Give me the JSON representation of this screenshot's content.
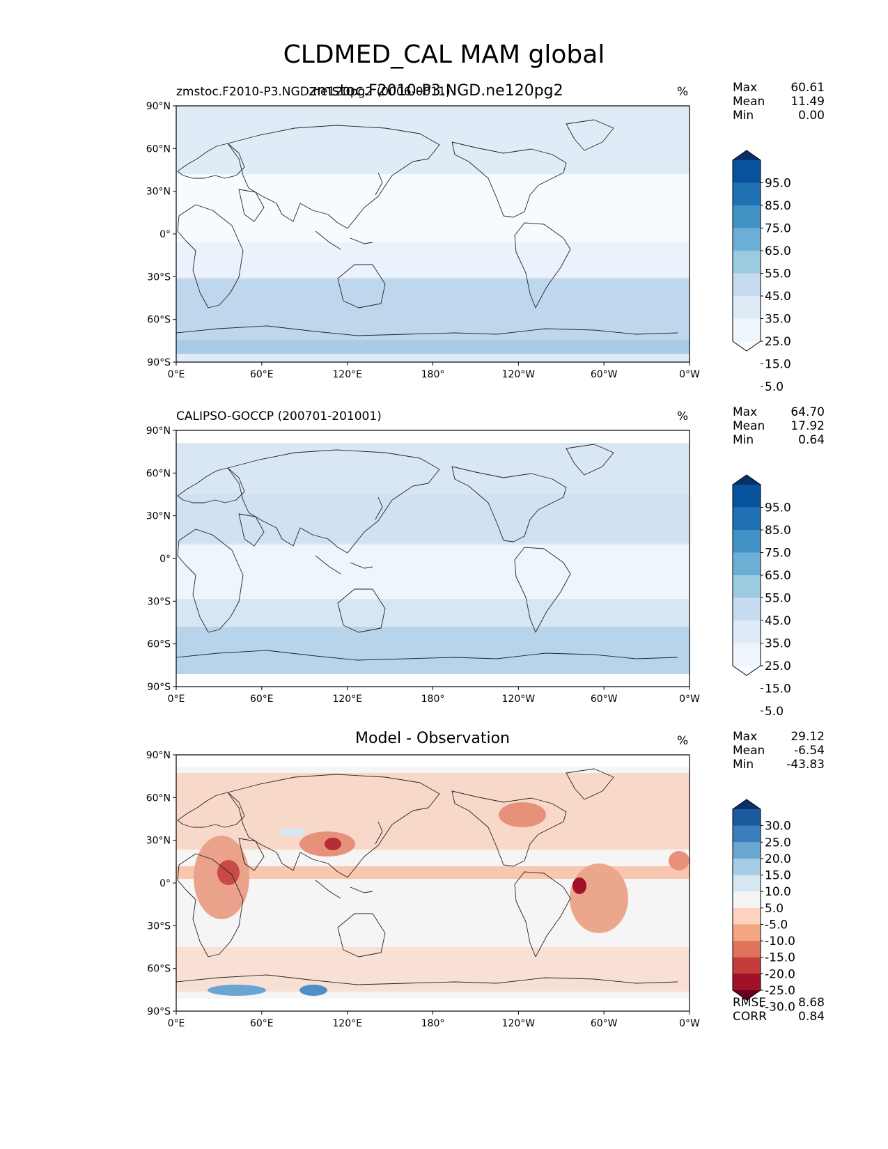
{
  "figure": {
    "title": "CLDMED_CAL MAM global",
    "overlay_title": "zmstoc.F2010-P3.NGD.ne120pg2"
  },
  "map": {
    "lat_ticks": [
      "90°N",
      "60°N",
      "30°N",
      "0°",
      "30°S",
      "60°S",
      "90°S"
    ],
    "lon_ticks": [
      "0°E",
      "60°E",
      "120°E",
      "180°",
      "120°W",
      "60°W",
      "0°W"
    ]
  },
  "panels": [
    {
      "title_left": "zmstoc.F2010-P3.NGD.ne120pg2 (0006-0011)",
      "title_center": "",
      "units": "%",
      "stats": [
        {
          "label": "Max",
          "value": "60.61"
        },
        {
          "label": "Mean",
          "value": "11.49"
        },
        {
          "label": "Min",
          "value": "0.00"
        }
      ],
      "colorbar": {
        "labels": [
          "95.0",
          "85.0",
          "75.0",
          "65.0",
          "55.0",
          "45.0",
          "35.0",
          "25.0",
          "15.0",
          "5.0"
        ],
        "colors": [
          "#08306b",
          "#08519c",
          "#2171b5",
          "#4292c6",
          "#6baed6",
          "#9ecae1",
          "#c6dbef",
          "#deebf7",
          "#eef5fc",
          "#f7fbff"
        ]
      },
      "footer": []
    },
    {
      "title_left": "CALIPSO-GOCCP (200701-201001)",
      "title_center": "",
      "units": "%",
      "stats": [
        {
          "label": "Max",
          "value": "64.70"
        },
        {
          "label": "Mean",
          "value": "17.92"
        },
        {
          "label": "Min",
          "value": "0.64"
        }
      ],
      "colorbar": {
        "labels": [
          "95.0",
          "85.0",
          "75.0",
          "65.0",
          "55.0",
          "45.0",
          "35.0",
          "25.0",
          "15.0",
          "5.0"
        ],
        "colors": [
          "#08306b",
          "#08519c",
          "#2171b5",
          "#4292c6",
          "#6baed6",
          "#9ecae1",
          "#c6dbef",
          "#deebf7",
          "#eef5fc",
          "#f7fbff"
        ]
      },
      "footer": []
    },
    {
      "title_left": "",
      "title_center": "Model - Observation",
      "units": "%",
      "stats": [
        {
          "label": "Max",
          "value": "29.12"
        },
        {
          "label": "Mean",
          "value": "-6.54"
        },
        {
          "label": "Min",
          "value": "-43.83"
        }
      ],
      "colorbar": {
        "labels": [
          "30.0",
          "25.0",
          "20.0",
          "15.0",
          "10.0",
          "5.0",
          "-5.0",
          "-10.0",
          "-15.0",
          "-20.0",
          "-25.0",
          "-30.0"
        ],
        "colors": [
          "#08306b",
          "#1c5a9e",
          "#3a7fbb",
          "#6aa6d1",
          "#a5cde3",
          "#d6e7f1",
          "#f4f4f4",
          "#fbd3c0",
          "#f4a582",
          "#e0735c",
          "#c43c3c",
          "#a11228",
          "#67001f"
        ]
      },
      "footer": [
        {
          "label": "RMSE",
          "value": "8.68"
        },
        {
          "label": "CORR",
          "value": "0.84"
        }
      ]
    }
  ]
}
